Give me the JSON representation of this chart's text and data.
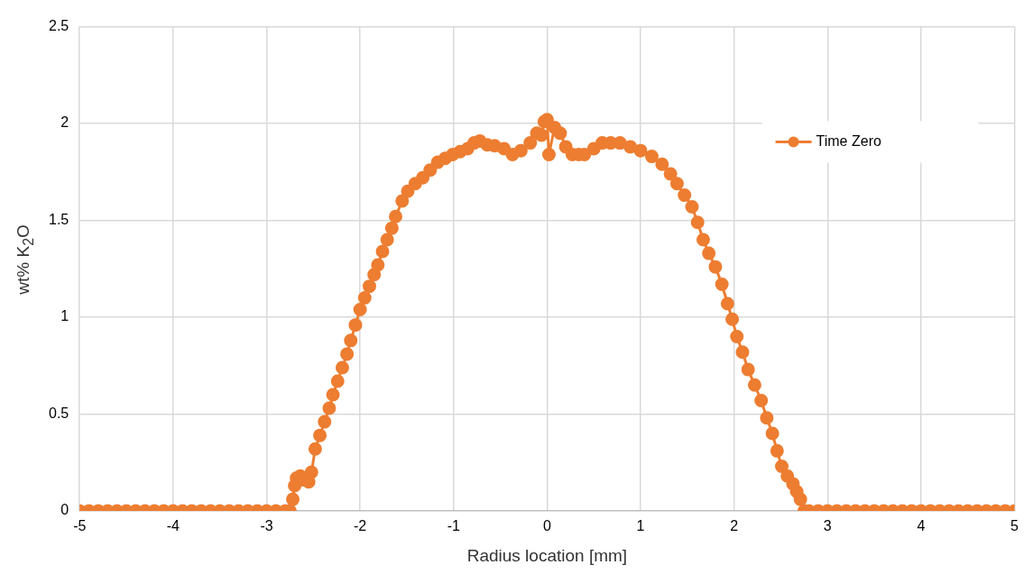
{
  "chart_data": {
    "type": "line",
    "xlabel": "Radius location [mm]",
    "ylabel": "wt% K$_{2}$O",
    "xlim": [
      -5,
      5
    ],
    "xticks": [
      -5,
      -4,
      -3,
      -2,
      -1,
      0,
      1,
      2,
      3,
      4,
      5
    ],
    "ylim": [
      0,
      2.5
    ],
    "yticks": [
      0,
      0.5,
      1,
      1.5,
      2,
      2.5
    ],
    "grid": true,
    "legend": "top right",
    "marker": "circle",
    "line_style": "solid",
    "series": [
      {
        "name": "Time Zero",
        "color": "#ed7d31",
        "x": [
          -5,
          -4.9,
          -4.8,
          -4.7,
          -4.6,
          -4.5,
          -4.4,
          -4.3,
          -4.2,
          -4.1,
          -4,
          -3.9,
          -3.8,
          -3.7,
          -3.6,
          -3.5,
          -3.4,
          -3.3,
          -3.2,
          -3.1,
          -3,
          -2.9,
          -2.8,
          -2.75,
          -2.72,
          -2.7,
          -2.68,
          -2.64,
          -2.6,
          -2.55,
          -2.52,
          -2.48,
          -2.43,
          -2.38,
          -2.33,
          -2.29,
          -2.24,
          -2.19,
          -2.14,
          -2.1,
          -2.05,
          -2,
          -1.95,
          -1.9,
          -1.85,
          -1.81,
          -1.76,
          -1.71,
          -1.66,
          -1.62,
          -1.55,
          -1.49,
          -1.41,
          -1.33,
          -1.25,
          -1.17,
          -1.09,
          -1.01,
          -0.93,
          -0.85,
          -0.78,
          -0.72,
          -0.64,
          -0.56,
          -0.46,
          -0.37,
          -0.28,
          -0.18,
          -0.11,
          -0.06,
          -0.03,
          0,
          0.02,
          0.08,
          0.14,
          0.2,
          0.27,
          0.34,
          0.4,
          0.5,
          0.59,
          0.68,
          0.78,
          0.89,
          1,
          1.12,
          1.23,
          1.32,
          1.39,
          1.47,
          1.55,
          1.61,
          1.67,
          1.73,
          1.8,
          1.87,
          1.93,
          1.98,
          2.03,
          2.09,
          2.15,
          2.22,
          2.29,
          2.35,
          2.41,
          2.46,
          2.51,
          2.57,
          2.63,
          2.67,
          2.71,
          2.75,
          2.8,
          2.9,
          3,
          3.1,
          3.2,
          3.3,
          3.4,
          3.5,
          3.6,
          3.7,
          3.8,
          3.9,
          4,
          4.1,
          4.2,
          4.3,
          4.4,
          4.5,
          4.6,
          4.7,
          4.8,
          4.9,
          5
        ],
        "values": [
          0,
          0,
          0,
          0,
          0,
          0,
          0,
          0,
          0,
          0,
          0,
          0,
          0,
          0,
          0,
          0,
          0,
          0,
          0,
          0,
          0,
          0,
          0,
          0,
          0.06,
          0.13,
          0.17,
          0.18,
          0.16,
          0.15,
          0.2,
          0.32,
          0.39,
          0.46,
          0.53,
          0.6,
          0.67,
          0.74,
          0.81,
          0.88,
          0.96,
          1.04,
          1.1,
          1.16,
          1.22,
          1.27,
          1.34,
          1.4,
          1.46,
          1.52,
          1.6,
          1.65,
          1.69,
          1.72,
          1.76,
          1.8,
          1.82,
          1.84,
          1.855,
          1.87,
          1.9,
          1.91,
          1.89,
          1.885,
          1.87,
          1.84,
          1.86,
          1.9,
          1.95,
          1.94,
          2.01,
          2.02,
          1.84,
          1.98,
          1.95,
          1.88,
          1.84,
          1.84,
          1.84,
          1.87,
          1.9,
          1.9,
          1.9,
          1.88,
          1.86,
          1.83,
          1.79,
          1.74,
          1.69,
          1.63,
          1.57,
          1.49,
          1.4,
          1.33,
          1.26,
          1.17,
          1.07,
          0.99,
          0.9,
          0.82,
          0.73,
          0.65,
          0.57,
          0.48,
          0.4,
          0.31,
          0.23,
          0.18,
          0.14,
          0.1,
          0.06,
          0,
          0,
          0,
          0,
          0,
          0,
          0,
          0,
          0,
          0,
          0,
          0,
          0,
          0,
          0,
          0,
          0,
          0,
          0,
          0,
          0,
          0,
          0,
          0
        ]
      }
    ]
  }
}
